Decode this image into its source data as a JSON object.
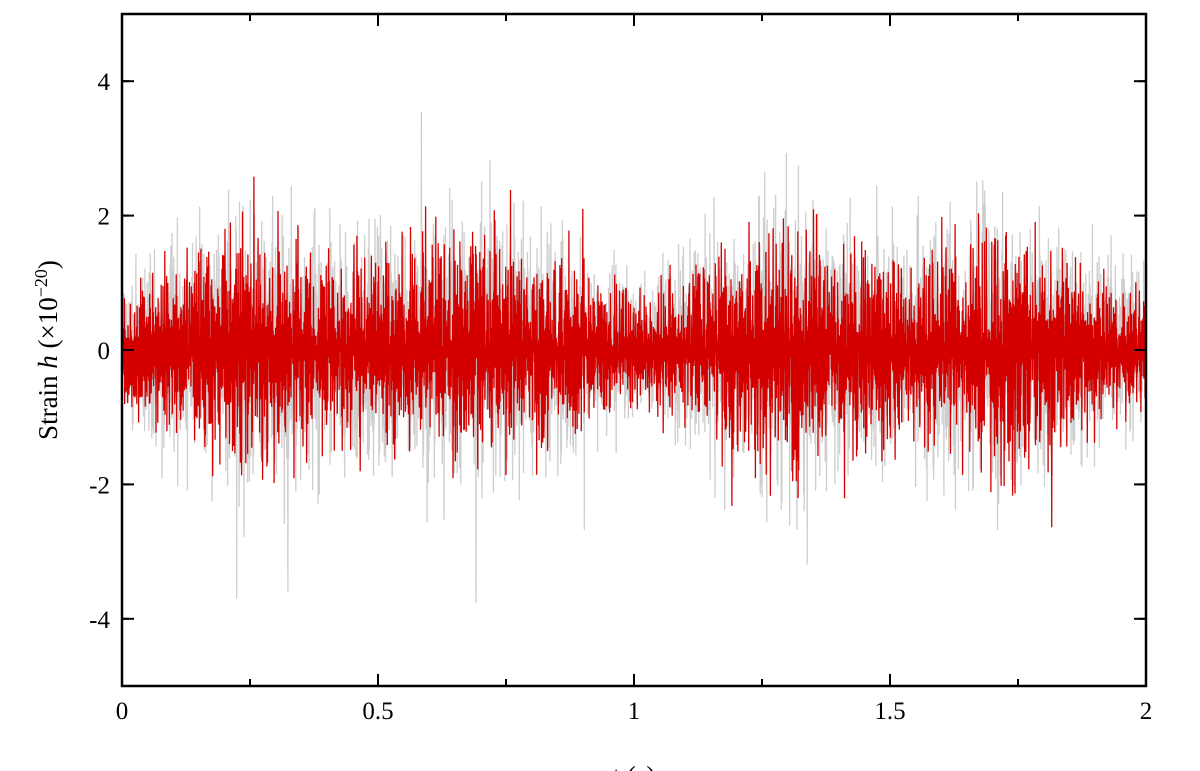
{
  "chart_data": {
    "type": "line",
    "title": "",
    "xlabel": "t (s)",
    "ylabel_parts": [
      "Strain ",
      "h",
      " (×10",
      "−20",
      ")"
    ],
    "xlim": [
      0,
      2
    ],
    "ylim": [
      -5,
      5
    ],
    "x_ticks": [
      0,
      0.5,
      1,
      1.5,
      2
    ],
    "x_tick_labels": [
      "0",
      "0.5",
      "1",
      "1.5",
      "2"
    ],
    "y_ticks": [
      -4,
      -2,
      0,
      2,
      4
    ],
    "y_tick_labels": [
      "-4",
      "-2",
      "0",
      "2",
      "4"
    ],
    "grid": false,
    "legend": "none",
    "envelope": {
      "x": [
        0.0,
        0.1,
        0.24,
        0.35,
        0.5,
        0.62,
        0.72,
        0.85,
        0.95,
        1.0,
        1.05,
        1.15,
        1.28,
        1.4,
        1.5,
        1.6,
        1.73,
        1.85,
        2.0
      ],
      "black_amplitude": [
        1.5,
        2.2,
        2.9,
        2.5,
        2.2,
        2.6,
        2.9,
        2.2,
        1.6,
        1.4,
        1.6,
        2.3,
        2.9,
        2.5,
        2.2,
        2.5,
        2.9,
        2.2,
        1.5
      ],
      "red_amplitude": [
        1.1,
        1.7,
        2.3,
        2.0,
        1.75,
        2.0,
        2.3,
        1.8,
        1.3,
        1.1,
        1.3,
        1.8,
        2.3,
        2.0,
        1.75,
        2.0,
        2.3,
        1.7,
        1.1
      ]
    },
    "series": [
      {
        "color": "#222222",
        "opacity": 0.22
      },
      {
        "color": "#d40000",
        "opacity": 1.0
      }
    ]
  }
}
